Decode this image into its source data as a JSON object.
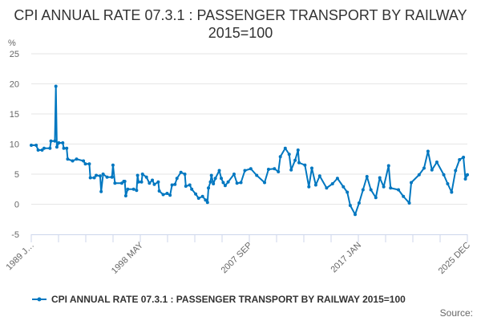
{
  "chart_data": {
    "type": "line",
    "title": "CPI ANNUAL RATE 07.3.1 : PASSENGER TRANSPORT BY RAILWAY 2015=100",
    "ylabel": "%",
    "xlabel": "",
    "ylim": [
      -5,
      25
    ],
    "xlim": [
      "1989-01",
      "2025-12"
    ],
    "yticks": [
      "25",
      "20",
      "15",
      "10",
      "5",
      "0",
      "-5"
    ],
    "xtick_labels": [
      "1989 J…",
      "1998 MAY",
      "2007 SEP",
      "2017 JAN",
      "2025 DEC"
    ],
    "grid": "horizontal",
    "legend_position": "bottom",
    "color": "#0077c0",
    "series": [
      {
        "name": "CPI ANNUAL RATE 07.3.1 : PASSENGER TRANSPORT BY RAILWAY 2015=100",
        "points": [
          [
            "1989-01",
            9.8
          ],
          [
            "1989-06",
            9.8
          ],
          [
            "1989-08",
            9.0
          ],
          [
            "1989-12",
            9.0
          ],
          [
            "1990-02",
            9.3
          ],
          [
            "1990-08",
            9.3
          ],
          [
            "1990-09",
            10.5
          ],
          [
            "1991-01",
            10.5
          ],
          [
            "1991-02",
            19.6
          ],
          [
            "1991-03",
            9.5
          ],
          [
            "1991-05",
            10.2
          ],
          [
            "1991-09",
            10.2
          ],
          [
            "1991-10",
            9.3
          ],
          [
            "1992-01",
            9.3
          ],
          [
            "1992-02",
            7.5
          ],
          [
            "1992-07",
            7.2
          ],
          [
            "1992-11",
            7.5
          ],
          [
            "1993-06",
            7.2
          ],
          [
            "1993-08",
            6.7
          ],
          [
            "1993-12",
            6.7
          ],
          [
            "1994-01",
            4.4
          ],
          [
            "1994-05",
            4.4
          ],
          [
            "1994-07",
            4.8
          ],
          [
            "1994-11",
            4.7
          ],
          [
            "1994-12",
            2.1
          ],
          [
            "1995-02",
            5.0
          ],
          [
            "1995-06",
            4.5
          ],
          [
            "1995-11",
            4.5
          ],
          [
            "1995-12",
            6.5
          ],
          [
            "1996-02",
            3.5
          ],
          [
            "1996-09",
            3.5
          ],
          [
            "1996-11",
            3.8
          ],
          [
            "1996-12",
            3.8
          ],
          [
            "1997-01",
            1.4
          ],
          [
            "1997-03",
            2.5
          ],
          [
            "1997-09",
            2.5
          ],
          [
            "1997-12",
            2.3
          ],
          [
            "1998-01",
            4.8
          ],
          [
            "1998-02",
            3.7
          ],
          [
            "1998-05",
            3.7
          ],
          [
            "1998-06",
            5.0
          ],
          [
            "1998-10",
            4.5
          ],
          [
            "1999-01",
            3.5
          ],
          [
            "1999-04",
            4.0
          ],
          [
            "1999-06",
            3.3
          ],
          [
            "1999-10",
            3.7
          ],
          [
            "1999-11",
            2.2
          ],
          [
            "2000-03",
            1.6
          ],
          [
            "2000-07",
            1.8
          ],
          [
            "2000-10",
            1.5
          ],
          [
            "2000-12",
            3.2
          ],
          [
            "2001-03",
            3.3
          ],
          [
            "2001-05",
            4.3
          ],
          [
            "2001-09",
            5.3
          ],
          [
            "2002-01",
            5.0
          ],
          [
            "2002-02",
            3.0
          ],
          [
            "2002-06",
            3.2
          ],
          [
            "2002-08",
            2.5
          ],
          [
            "2002-12",
            1.7
          ],
          [
            "2003-03",
            1.0
          ],
          [
            "2003-07",
            1.3
          ],
          [
            "2003-10",
            0.7
          ],
          [
            "2003-12",
            0.3
          ],
          [
            "2004-01",
            2.7
          ],
          [
            "2004-03",
            3.7
          ],
          [
            "2004-04",
            4.8
          ],
          [
            "2004-06",
            3.4
          ],
          [
            "2004-08",
            4.3
          ],
          [
            "2004-12",
            5.6
          ],
          [
            "2005-02",
            4.3
          ],
          [
            "2005-04",
            3.6
          ],
          [
            "2005-06",
            3.1
          ],
          [
            "2005-09",
            3.7
          ],
          [
            "2006-03",
            5.0
          ],
          [
            "2006-06",
            3.5
          ],
          [
            "2006-10",
            3.6
          ],
          [
            "2007-02",
            5.6
          ],
          [
            "2007-08",
            5.9
          ],
          [
            "2008-02",
            4.8
          ],
          [
            "2008-10",
            3.6
          ],
          [
            "2009-02",
            5.8
          ],
          [
            "2009-08",
            5.9
          ],
          [
            "2009-12",
            5.4
          ],
          [
            "2010-02",
            7.9
          ],
          [
            "2010-07",
            9.3
          ],
          [
            "2010-11",
            8.3
          ],
          [
            "2011-01",
            5.7
          ],
          [
            "2011-05",
            7.3
          ],
          [
            "2011-08",
            9.0
          ],
          [
            "2011-09",
            6.9
          ],
          [
            "2012-03",
            6.5
          ],
          [
            "2012-07",
            2.9
          ],
          [
            "2012-10",
            6.0
          ],
          [
            "2013-02",
            3.2
          ],
          [
            "2013-06",
            4.7
          ],
          [
            "2014-01",
            2.7
          ],
          [
            "2014-07",
            3.4
          ],
          [
            "2014-12",
            4.3
          ],
          [
            "2015-06",
            2.9
          ],
          [
            "2015-10",
            2.0
          ],
          [
            "2016-01",
            -0.2
          ],
          [
            "2016-06",
            -1.7
          ],
          [
            "2016-10",
            0.2
          ],
          [
            "2017-02",
            2.4
          ],
          [
            "2017-06",
            4.6
          ],
          [
            "2017-10",
            2.4
          ],
          [
            "2018-03",
            1.1
          ],
          [
            "2018-07",
            4.4
          ],
          [
            "2018-11",
            2.9
          ],
          [
            "2019-04",
            6.4
          ],
          [
            "2019-06",
            2.7
          ],
          [
            "2020-02",
            2.4
          ],
          [
            "2020-07",
            1.3
          ],
          [
            "2021-01",
            0.2
          ],
          [
            "2021-03",
            3.6
          ],
          [
            "2021-11",
            4.9
          ],
          [
            "2022-04",
            6.0
          ],
          [
            "2022-08",
            8.8
          ],
          [
            "2022-12",
            5.7
          ],
          [
            "2023-05",
            7.0
          ],
          [
            "2023-12",
            4.9
          ],
          [
            "2024-04",
            3.4
          ],
          [
            "2024-08",
            2.0
          ],
          [
            "2024-12",
            5.6
          ],
          [
            "2025-04",
            7.4
          ],
          [
            "2025-08",
            7.8
          ],
          [
            "2025-10",
            4.2
          ],
          [
            "2025-12",
            4.9
          ]
        ]
      }
    ],
    "source_label": "Source:"
  }
}
